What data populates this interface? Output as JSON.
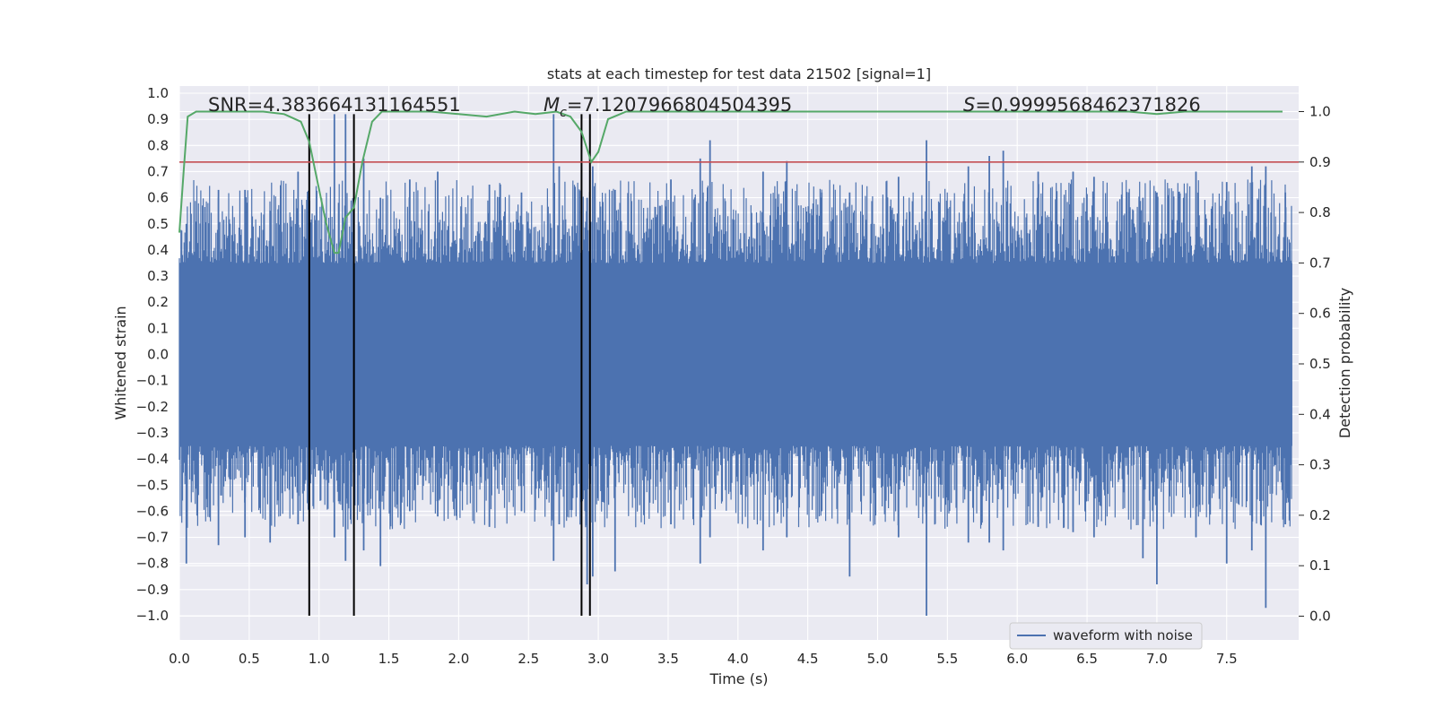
{
  "chart_data": {
    "type": "line",
    "title": "stats at each timestep for test data 21502 [signal=1]",
    "xlabel": "Time (s)",
    "ylabel": "Whitened strain",
    "y2label": "Detection probability",
    "xlim": [
      0.0,
      8.0
    ],
    "ylim": [
      -1.1,
      1.1
    ],
    "y2lim": [
      -0.05,
      1.04
    ],
    "xticks": [
      "0.0",
      "0.5",
      "1.0",
      "1.5",
      "2.0",
      "2.5",
      "3.0",
      "3.5",
      "4.0",
      "4.5",
      "5.0",
      "5.5",
      "6.0",
      "6.5",
      "7.0",
      "7.5"
    ],
    "yticks": [
      "1.0",
      "0.9",
      "0.8",
      "0.7",
      "0.6",
      "0.5",
      "0.4",
      "0.3",
      "0.2",
      "0.1",
      "0.0",
      "−0.1",
      "−0.2",
      "−0.3",
      "−0.4",
      "−0.5",
      "−0.6",
      "−0.7",
      "−0.8",
      "−0.9",
      "−1.0"
    ],
    "y2ticks": [
      "1.0",
      "0.9",
      "0.8",
      "0.7",
      "0.6",
      "0.5",
      "0.4",
      "0.3",
      "0.2",
      "0.1",
      "0.0"
    ],
    "grid": true,
    "legend": {
      "position": "lower-right",
      "entries": [
        {
          "label": "waveform with noise",
          "color": "#4c72b0"
        }
      ]
    },
    "annotations": {
      "snr": "SNR=4.383664131164551",
      "mc_symbol": "M",
      "mc_sub": "c",
      "mc_value": "=7.1207966804504395",
      "s_symbol": "S",
      "s_value": "=0.9999568462371826"
    },
    "waveform": {
      "name": "waveform with noise",
      "color": "#4c72b0",
      "core_amplitude": 0.35,
      "spikes": [
        {
          "x": 0.05,
          "top": 0.5,
          "bottom": -0.8
        },
        {
          "x": 0.28,
          "top": 0.63,
          "bottom": -0.73
        },
        {
          "x": 0.47,
          "top": 0.63,
          "bottom": -0.7
        },
        {
          "x": 0.65,
          "top": 0.55,
          "bottom": -0.72
        },
        {
          "x": 0.85,
          "top": 0.7,
          "bottom": -0.65
        },
        {
          "x": 0.93,
          "top": 0.58,
          "bottom": -0.6
        },
        {
          "x": 1.11,
          "top": 0.92,
          "bottom": -0.7
        },
        {
          "x": 1.19,
          "top": 0.92,
          "bottom": -0.79
        },
        {
          "x": 1.32,
          "top": 0.75,
          "bottom": -0.75
        },
        {
          "x": 1.44,
          "top": 0.6,
          "bottom": -0.81
        },
        {
          "x": 1.65,
          "top": 0.67,
          "bottom": -0.6
        },
        {
          "x": 1.85,
          "top": 0.7,
          "bottom": -0.62
        },
        {
          "x": 2.22,
          "top": 0.65,
          "bottom": -0.66
        },
        {
          "x": 2.45,
          "top": 0.62,
          "bottom": -0.6
        },
        {
          "x": 2.68,
          "top": 0.92,
          "bottom": -0.79
        },
        {
          "x": 2.72,
          "top": 0.72,
          "bottom": -0.65
        },
        {
          "x": 2.92,
          "top": 0.6,
          "bottom": -0.88
        },
        {
          "x": 2.96,
          "top": 0.72,
          "bottom": -0.85
        },
        {
          "x": 3.12,
          "top": 0.63,
          "bottom": -0.83
        },
        {
          "x": 3.52,
          "top": 0.67,
          "bottom": -0.65
        },
        {
          "x": 3.73,
          "top": 0.75,
          "bottom": -0.8
        },
        {
          "x": 3.8,
          "top": 0.82,
          "bottom": -0.7
        },
        {
          "x": 4.18,
          "top": 0.7,
          "bottom": -0.75
        },
        {
          "x": 4.35,
          "top": 0.74,
          "bottom": -0.7
        },
        {
          "x": 4.6,
          "top": 0.62,
          "bottom": -0.6
        },
        {
          "x": 4.8,
          "top": 0.62,
          "bottom": -0.85
        },
        {
          "x": 5.15,
          "top": 0.68,
          "bottom": -0.7
        },
        {
          "x": 5.35,
          "top": 0.82,
          "bottom": -1.0
        },
        {
          "x": 5.65,
          "top": 0.72,
          "bottom": -0.72
        },
        {
          "x": 5.8,
          "top": 0.76,
          "bottom": -0.72
        },
        {
          "x": 5.9,
          "top": 0.78,
          "bottom": -0.75
        },
        {
          "x": 6.15,
          "top": 0.7,
          "bottom": -0.66
        },
        {
          "x": 6.4,
          "top": 0.7,
          "bottom": -0.68
        },
        {
          "x": 6.55,
          "top": 0.68,
          "bottom": -0.7
        },
        {
          "x": 6.9,
          "top": 0.6,
          "bottom": -0.78
        },
        {
          "x": 7.0,
          "top": 0.62,
          "bottom": -0.88
        },
        {
          "x": 7.28,
          "top": 0.7,
          "bottom": -0.7
        },
        {
          "x": 7.5,
          "top": 0.66,
          "bottom": -0.8
        },
        {
          "x": 7.68,
          "top": 0.72,
          "bottom": -0.75
        },
        {
          "x": 7.78,
          "top": 0.72,
          "bottom": -0.97
        },
        {
          "x": 7.92,
          "top": 0.62,
          "bottom": -0.65
        }
      ]
    },
    "detection_probability": {
      "color": "#55a868",
      "x": [
        0.0,
        0.03,
        0.06,
        0.12,
        0.2,
        0.4,
        0.6,
        0.75,
        0.87,
        0.93,
        0.99,
        1.05,
        1.11,
        1.14,
        1.19,
        1.25,
        1.31,
        1.38,
        1.45,
        1.6,
        1.8,
        2.0,
        2.2,
        2.4,
        2.55,
        2.7,
        2.8,
        2.88,
        2.95,
        3.0,
        3.07,
        3.2,
        3.5,
        3.7,
        4.0,
        4.5,
        5.0,
        6.0,
        6.5,
        6.8,
        7.0,
        7.2,
        7.5,
        7.9
      ],
      "y": [
        0.76,
        0.88,
        0.99,
        1.0,
        1.0,
        1.0,
        1.0,
        0.995,
        0.98,
        0.94,
        0.86,
        0.78,
        0.72,
        0.72,
        0.79,
        0.81,
        0.9,
        0.98,
        1.0,
        1.0,
        1.0,
        0.995,
        0.99,
        1.0,
        0.995,
        1.0,
        0.99,
        0.96,
        0.9,
        0.92,
        0.985,
        1.0,
        1.0,
        1.0,
        1.0,
        1.0,
        1.0,
        1.0,
        1.0,
        1.0,
        0.995,
        1.0,
        1.0,
        1.0
      ]
    },
    "threshold": {
      "value": 0.9,
      "color": "#c44e52"
    },
    "markers": {
      "x": [
        0.93,
        1.25,
        2.88,
        2.94
      ],
      "y_range": [
        -1.0,
        0.92
      ],
      "color": "#000000"
    }
  }
}
